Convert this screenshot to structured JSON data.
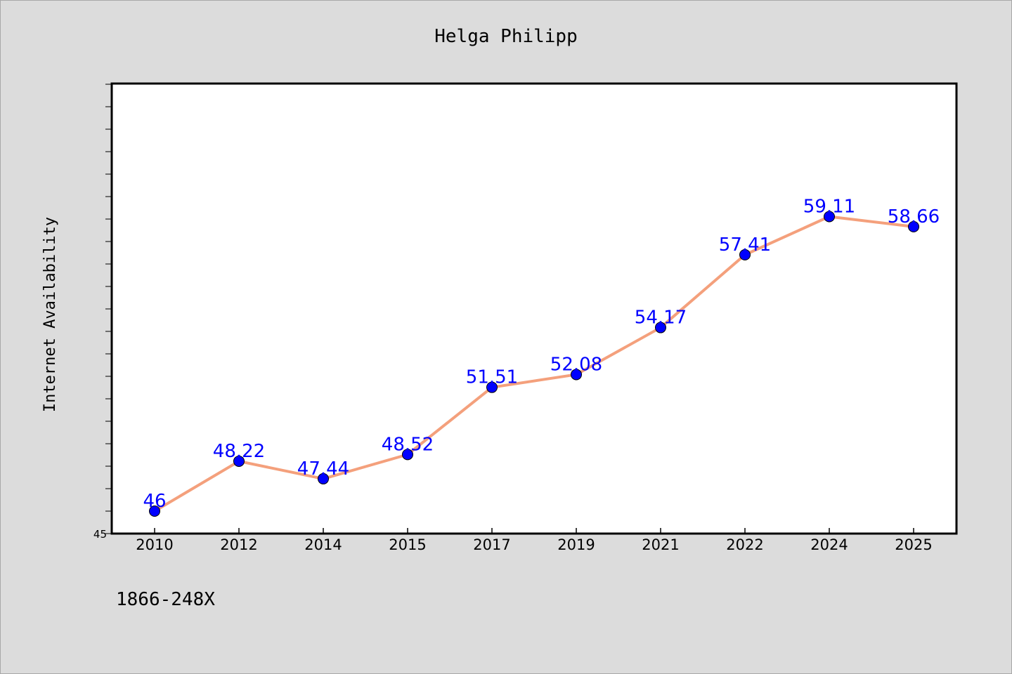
{
  "chart_data": {
    "type": "line",
    "title": "Helga Philipp",
    "xlabel": "",
    "ylabel": "Internet Availability",
    "categories": [
      "2010",
      "2012",
      "2014",
      "2015",
      "2017",
      "2019",
      "2021",
      "2022",
      "2024",
      "2025"
    ],
    "series": [
      {
        "values": [
          46,
          48.22,
          47.44,
          48.52,
          51.51,
          52.08,
          54.17,
          57.41,
          59.11,
          58.66
        ],
        "labels": [
          "46",
          "48.22",
          "47.44",
          "48.52",
          "51.51",
          "52.08",
          "54.17",
          "57.41",
          "59.11",
          "58.66"
        ]
      }
    ],
    "ylim": [
      45,
      65
    ],
    "y_tick_labels": [
      "45"
    ],
    "grid": false,
    "legend": "none",
    "footnote": "1866-248X",
    "colors": {
      "background": "#dcdcdc",
      "plot_background": "#ffffff",
      "line": "#f4a07c",
      "marker": "#0000ff",
      "data_label": "#0000ff",
      "axis": "#000000"
    }
  }
}
